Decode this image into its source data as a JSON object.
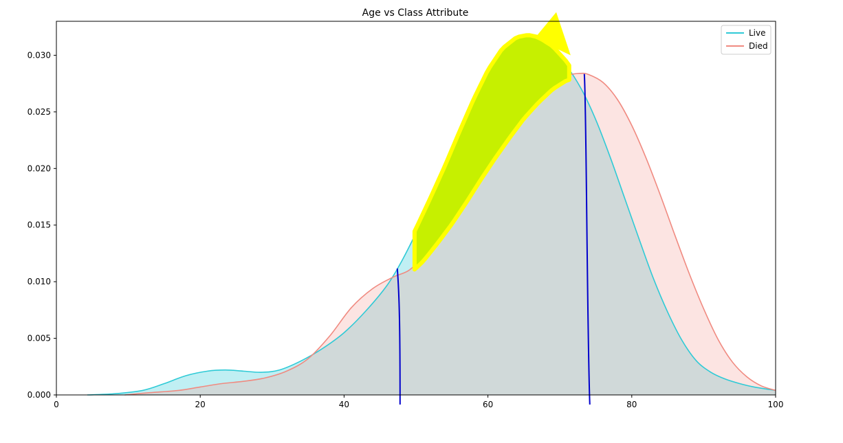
{
  "chart_data": {
    "type": "area",
    "title": "Age vs Class Attribute",
    "xlabel": "",
    "ylabel": "",
    "xlim": [
      0,
      100
    ],
    "ylim": [
      0,
      0.033
    ],
    "x_ticks": [
      0,
      20,
      40,
      60,
      80,
      100
    ],
    "y_ticks": [
      0.0,
      0.005,
      0.01,
      0.015,
      0.02,
      0.025,
      0.03
    ],
    "x_tick_labels": [
      "0",
      "20",
      "40",
      "60",
      "80",
      "100"
    ],
    "y_tick_labels": [
      "0.000",
      "0.005",
      "0.010",
      "0.015",
      "0.020",
      "0.025",
      "0.030"
    ],
    "legend_position": "top-right",
    "series": [
      {
        "name": "Live",
        "color": "#2ecad6",
        "fill": "#2ecad6",
        "x": [
          4.3,
          8,
          12,
          15,
          18,
          21,
          23.5,
          26,
          28.5,
          31,
          34,
          37,
          40,
          43,
          46,
          48,
          50,
          52,
          54,
          56,
          58,
          60,
          62,
          64,
          65.6,
          67,
          69,
          71,
          73,
          75,
          77,
          79,
          81,
          83,
          85,
          87,
          89,
          91,
          93,
          95,
          97,
          100
        ],
        "y": [
          0.0,
          0.0001,
          0.0004,
          0.001,
          0.0017,
          0.0021,
          0.0022,
          0.0021,
          0.002,
          0.0022,
          0.003,
          0.0041,
          0.0055,
          0.0074,
          0.0097,
          0.0118,
          0.0143,
          0.017,
          0.0198,
          0.0228,
          0.0257,
          0.0283,
          0.0302,
          0.0312,
          0.0314,
          0.0312,
          0.0304,
          0.029,
          0.027,
          0.0243,
          0.021,
          0.0174,
          0.0138,
          0.0103,
          0.0073,
          0.0048,
          0.003,
          0.002,
          0.0014,
          0.001,
          0.0007,
          0.0004
        ]
      },
      {
        "name": "Died",
        "color": "#f08a80",
        "fill": "#f4a6a0",
        "x": [
          9.5,
          13,
          17,
          20,
          23,
          26,
          29,
          32,
          35,
          38,
          41,
          44,
          46.8,
          49,
          51,
          53,
          55,
          57,
          59,
          61,
          63,
          65,
          67,
          69,
          71,
          72.8,
          74,
          76,
          78,
          80,
          82,
          84,
          86,
          88,
          90,
          92,
          94,
          96,
          98,
          100
        ],
        "y": [
          0.0,
          0.0002,
          0.0004,
          0.0007,
          0.001,
          0.0012,
          0.0015,
          0.0021,
          0.0032,
          0.0052,
          0.0077,
          0.0094,
          0.0104,
          0.011,
          0.0122,
          0.0138,
          0.0155,
          0.0174,
          0.0194,
          0.0213,
          0.0231,
          0.0248,
          0.0262,
          0.0274,
          0.0282,
          0.0284,
          0.0283,
          0.0276,
          0.0261,
          0.0238,
          0.0209,
          0.0176,
          0.0141,
          0.0107,
          0.0076,
          0.0049,
          0.0029,
          0.0016,
          0.0008,
          0.0004
        ]
      }
    ],
    "annotations": {
      "yellow_highlight_color": "#c6f000",
      "yellow_highlight_edge_color": "#ffff00",
      "vertical_markers_color": "#0000cc",
      "vertical_marker_x": [
        47.4,
        73.4
      ]
    }
  }
}
